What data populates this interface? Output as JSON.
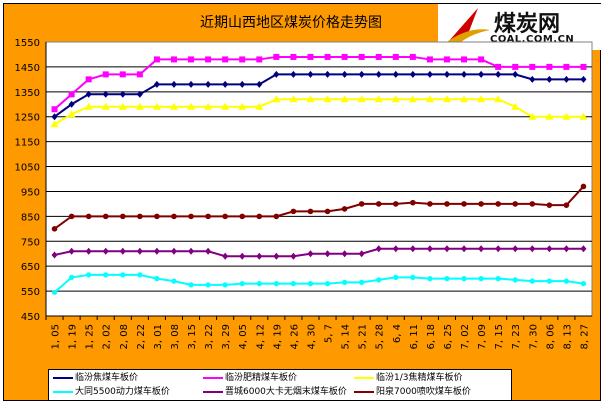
{
  "chart_data": {
    "type": "line",
    "title": "近期山西地区煤炭价格走势图",
    "xlabel": "",
    "ylabel": "",
    "ylim": [
      450,
      1550
    ],
    "yticks": [
      450,
      550,
      650,
      750,
      850,
      950,
      1050,
      1150,
      1250,
      1350,
      1450,
      1550
    ],
    "grid": true,
    "legend_position": "bottom",
    "categories": [
      "1.05",
      "1.19",
      "1.25",
      "2.02",
      "2.08",
      "2.22",
      "3.01",
      "3.08",
      "3.15",
      "3.22",
      "3.29",
      "4.05",
      "4.12",
      "4.19",
      "4.26",
      "4.30",
      "5.7",
      "5.14",
      "5.21",
      "5.28",
      "6.4",
      "6.11",
      "6.18",
      "6.25",
      "7.02",
      "7.09",
      "7.15",
      "7.23",
      "7.30",
      "8.06",
      "8.13",
      "8.27"
    ],
    "series": [
      {
        "name": "临汾焦煤车板价",
        "color": "#000080",
        "marker": "diamond",
        "values": [
          1250,
          1300,
          1340,
          1340,
          1340,
          1340,
          1380,
          1380,
          1380,
          1380,
          1380,
          1380,
          1380,
          1420,
          1420,
          1420,
          1420,
          1420,
          1420,
          1420,
          1420,
          1420,
          1420,
          1420,
          1420,
          1420,
          1420,
          1420,
          1400,
          1400,
          1400,
          1400
        ]
      },
      {
        "name": "临汾肥精煤车板价",
        "color": "#FF00FF",
        "marker": "square",
        "values": [
          1280,
          1340,
          1400,
          1420,
          1420,
          1420,
          1480,
          1480,
          1480,
          1480,
          1480,
          1480,
          1480,
          1490,
          1490,
          1490,
          1490,
          1490,
          1490,
          1490,
          1490,
          1490,
          1480,
          1480,
          1480,
          1480,
          1450,
          1450,
          1450,
          1450,
          1450,
          1450
        ]
      },
      {
        "name": "临汾1/3焦精煤车板价",
        "color": "#FFFF00",
        "marker": "triangle",
        "values": [
          1220,
          1260,
          1290,
          1290,
          1290,
          1290,
          1290,
          1290,
          1290,
          1290,
          1290,
          1290,
          1290,
          1320,
          1320,
          1320,
          1320,
          1320,
          1320,
          1320,
          1320,
          1320,
          1320,
          1320,
          1320,
          1320,
          1320,
          1290,
          1250,
          1250,
          1250,
          1250
        ]
      },
      {
        "name": "大同5500动力煤车板价",
        "color": "#00FFFF",
        "marker": "x",
        "values": [
          545,
          605,
          615,
          615,
          615,
          615,
          600,
          590,
          575,
          575,
          575,
          580,
          580,
          580,
          580,
          580,
          580,
          585,
          585,
          595,
          605,
          605,
          600,
          600,
          600,
          600,
          600,
          595,
          590,
          590,
          590,
          580
        ]
      },
      {
        "name": "晋城6000大卡无烟末煤车板价",
        "color": "#800080",
        "marker": "diamond",
        "values": [
          695,
          710,
          710,
          710,
          710,
          710,
          710,
          710,
          710,
          710,
          690,
          690,
          690,
          690,
          690,
          700,
          700,
          700,
          700,
          720,
          720,
          720,
          720,
          720,
          720,
          720,
          720,
          720,
          720,
          720,
          720,
          720
        ]
      },
      {
        "name": "阳泉7000喷吹煤车板价",
        "color": "#800000",
        "marker": "circle",
        "values": [
          800,
          850,
          850,
          850,
          850,
          850,
          850,
          850,
          850,
          850,
          850,
          850,
          850,
          850,
          870,
          870,
          870,
          880,
          900,
          900,
          900,
          905,
          900,
          900,
          900,
          900,
          900,
          900,
          900,
          895,
          895,
          970
        ]
      }
    ]
  },
  "logo": {
    "cn": "煤炭网",
    "en": "COAL.COM.CN"
  }
}
